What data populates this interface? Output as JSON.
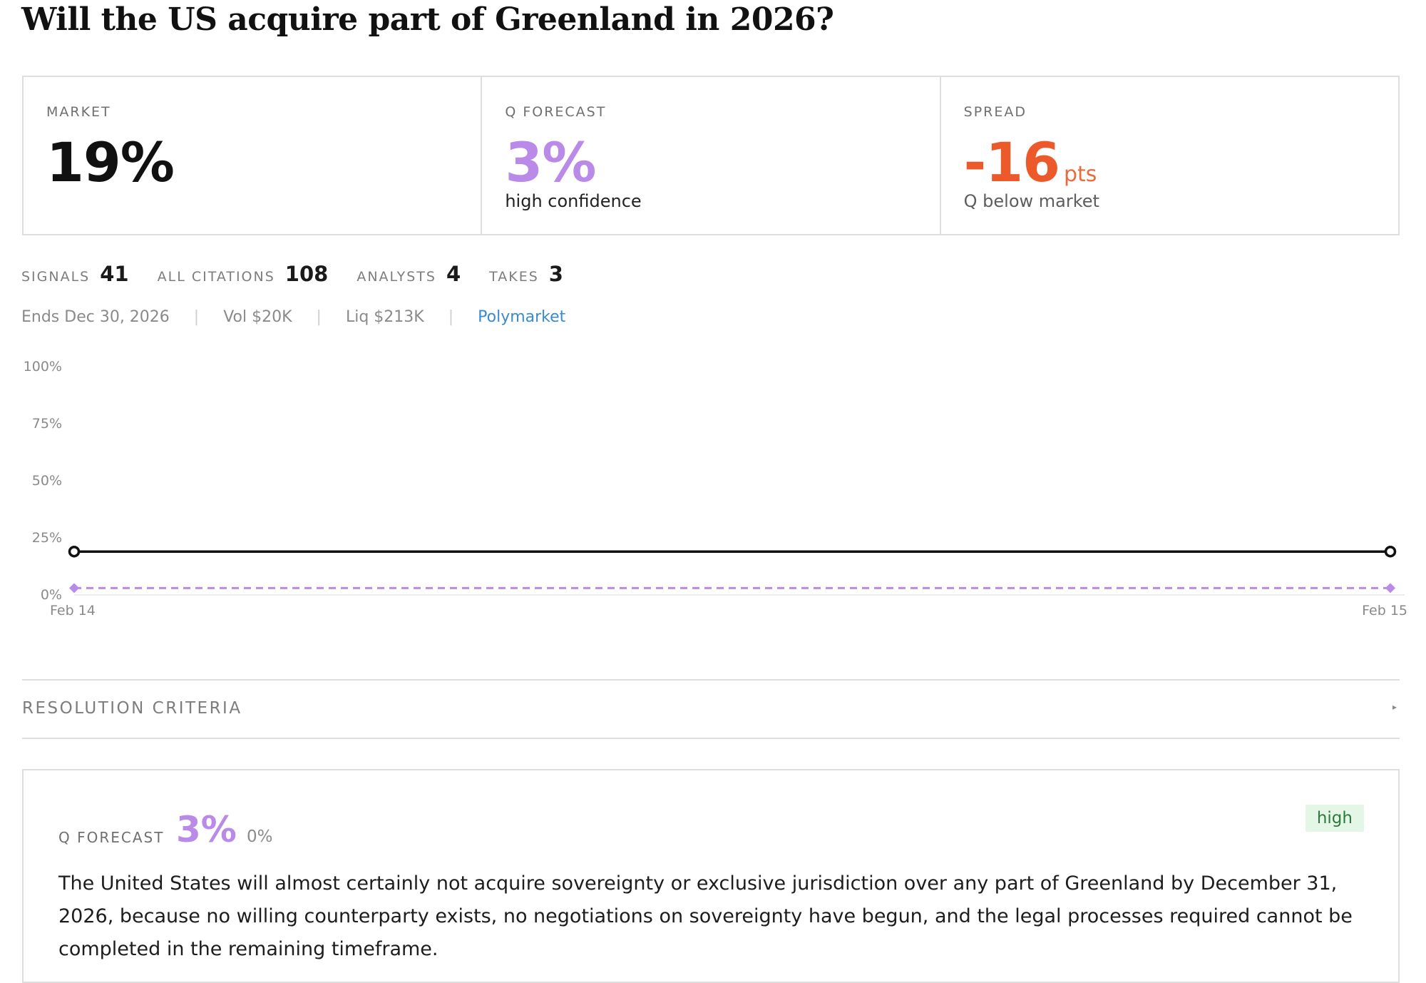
{
  "title": "Will the US acquire part of Greenland in 2026?",
  "stats": {
    "market": {
      "label": "MARKET",
      "value": "19%"
    },
    "forecast": {
      "label": "Q FORECAST",
      "value": "3%",
      "sub": "high confidence"
    },
    "spread": {
      "label": "SPREAD",
      "value": "-16",
      "unit": "pts",
      "sub": "Q below market"
    }
  },
  "counts": [
    {
      "label": "SIGNALS",
      "value": "41"
    },
    {
      "label": "ALL CITATIONS",
      "value": "108"
    },
    {
      "label": "ANALYSTS",
      "value": "4"
    },
    {
      "label": "TAKES",
      "value": "3"
    }
  ],
  "meta": {
    "ends": "Ends Dec 30, 2026",
    "volume": "Vol $20K",
    "liquidity": "Liq $213K",
    "source": "Polymarket"
  },
  "chart_data": {
    "type": "line",
    "x": [
      "Feb 14",
      "Feb 15"
    ],
    "y_ticks": [
      "100%",
      "75%",
      "50%",
      "25%",
      "0%"
    ],
    "ylim": [
      0,
      100
    ],
    "grid": false,
    "series": [
      {
        "values": [
          19,
          19
        ],
        "color": "#111111",
        "style": "solid"
      },
      {
        "values": [
          3,
          3
        ],
        "color": "#b98ae8",
        "style": "dashed"
      }
    ]
  },
  "resolution": {
    "label": "RESOLUTION CRITERIA",
    "arrow": "▸"
  },
  "forecast_card": {
    "label": "Q FORECAST",
    "value": "3%",
    "range": "0%",
    "badge": "high",
    "text": "The United States will almost certainly not acquire sovereignty or exclusive jurisdiction over any part of Greenland by December 31, 2026, because no willing counterparty exists, no negotiations on sovereignty have begun, and the legal processes required cannot be completed in the remaining timeframe."
  },
  "colors": {
    "accent_purple": "#b98ae8",
    "spread_orange": "#ec5a2c",
    "link_blue": "#3b8ad0",
    "badge_green_bg": "#e4f6e6"
  }
}
